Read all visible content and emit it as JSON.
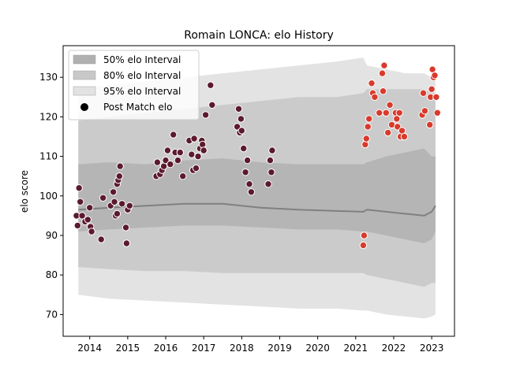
{
  "chart_data": {
    "type": "scatter",
    "title": "Romain LONCA: elo History",
    "xlabel": "",
    "ylabel": "elo score",
    "xlim": [
      2013.3,
      2023.6
    ],
    "ylim": [
      64.5,
      138.0
    ],
    "grid": false,
    "legend_position": "top-left",
    "x_ticks": [
      2014,
      2015,
      2016,
      2017,
      2018,
      2019,
      2020,
      2021,
      2022,
      2023
    ],
    "x_tick_labels": [
      "2014",
      "2015",
      "2016",
      "2017",
      "2018",
      "2019",
      "2020",
      "2021",
      "2022",
      "2023"
    ],
    "y_ticks": [
      70,
      80,
      90,
      100,
      110,
      120,
      130
    ],
    "y_tick_labels": [
      "70",
      "80",
      "90",
      "100",
      "110",
      "120",
      "130"
    ],
    "legend": [
      {
        "label": "50% elo Interval",
        "kind": "band",
        "color": "#b0b0b0"
      },
      {
        "label": "80% elo Interval",
        "kind": "band",
        "color": "#c8c8c8"
      },
      {
        "label": "95% elo Interval",
        "kind": "band",
        "color": "#e2e2e2"
      },
      {
        "label": "Post Match elo",
        "kind": "marker",
        "color": "#000000"
      }
    ],
    "colors": {
      "band_50": "#b5b5b5",
      "band_80": "#cbcbcb",
      "band_95": "#e3e3e3",
      "median_line": "#808080",
      "early_points": "#5c1a2e",
      "late_points": "#d93a2b"
    },
    "bands": {
      "x": [
        2013.7,
        2014.5,
        2015.5,
        2016.5,
        2017.5,
        2018.5,
        2019.5,
        2020.5,
        2021.2,
        2021.3,
        2021.8,
        2022.3,
        2022.8,
        2023.0,
        2023.1
      ],
      "median": [
        96.5,
        97,
        97.5,
        98,
        98,
        97,
        96.5,
        96.2,
        96,
        96.5,
        96,
        95.5,
        95,
        96,
        97.5
      ],
      "p50_low": [
        91,
        91.5,
        92,
        92.5,
        92.5,
        92,
        91.5,
        91.5,
        91,
        91,
        90,
        89,
        88,
        89,
        91
      ],
      "p50_high": [
        108,
        108.5,
        108,
        109,
        109.5,
        108.5,
        108,
        108,
        108,
        108.5,
        110,
        111,
        112,
        110,
        110
      ],
      "p80_low": [
        82,
        81.5,
        81,
        81,
        80.5,
        80.5,
        80.5,
        80.5,
        80.5,
        80,
        79,
        78,
        77,
        78,
        78
      ],
      "p80_high": [
        119,
        120,
        121,
        122,
        123,
        124,
        125,
        125,
        126,
        127,
        127,
        127,
        127,
        126,
        126
      ],
      "p95_low": [
        75,
        74,
        73.5,
        73,
        72.5,
        72,
        71.5,
        71.5,
        71,
        71,
        70,
        69.5,
        69,
        69.5,
        70
      ],
      "p95_high": [
        127,
        128,
        129,
        130,
        131,
        132,
        133,
        134,
        135,
        133,
        132,
        131,
        131,
        130,
        130
      ]
    },
    "series": [
      {
        "color_key": "early_points",
        "points": [
          [
            2013.65,
            95
          ],
          [
            2013.68,
            92.5
          ],
          [
            2013.72,
            102
          ],
          [
            2013.75,
            98.5
          ],
          [
            2013.8,
            95
          ],
          [
            2013.88,
            93.5
          ],
          [
            2013.95,
            94
          ],
          [
            2014.02,
            92.2
          ],
          [
            2014.05,
            91
          ],
          [
            2014.0,
            97
          ],
          [
            2014.3,
            89
          ],
          [
            2014.35,
            99.5
          ],
          [
            2014.55,
            97.5
          ],
          [
            2014.62,
            101
          ],
          [
            2014.65,
            98.5
          ],
          [
            2014.68,
            95
          ],
          [
            2014.72,
            103
          ],
          [
            2014.75,
            104
          ],
          [
            2014.78,
            105
          ],
          [
            2014.8,
            107.5
          ],
          [
            2014.72,
            95.5
          ],
          [
            2014.85,
            98
          ],
          [
            2014.95,
            92
          ],
          [
            2014.97,
            88
          ],
          [
            2015.0,
            96.5
          ],
          [
            2015.05,
            97.5
          ],
          [
            2015.75,
            105
          ],
          [
            2015.78,
            108.5
          ],
          [
            2015.85,
            105.5
          ],
          [
            2015.9,
            106.5
          ],
          [
            2015.95,
            107.5
          ],
          [
            2016.0,
            109
          ],
          [
            2016.05,
            111.5
          ],
          [
            2016.12,
            108
          ],
          [
            2016.2,
            115.5
          ],
          [
            2016.25,
            111
          ],
          [
            2016.32,
            109
          ],
          [
            2016.38,
            111
          ],
          [
            2016.45,
            105
          ],
          [
            2016.62,
            114
          ],
          [
            2016.68,
            110.5
          ],
          [
            2016.72,
            106.5
          ],
          [
            2016.75,
            114.5
          ],
          [
            2016.8,
            107
          ],
          [
            2016.85,
            110
          ],
          [
            2016.9,
            112
          ],
          [
            2016.95,
            114
          ],
          [
            2016.97,
            113
          ],
          [
            2017.0,
            111.5
          ],
          [
            2017.05,
            120.5
          ],
          [
            2017.18,
            128
          ],
          [
            2017.22,
            123
          ],
          [
            2017.88,
            117.5
          ],
          [
            2017.92,
            122
          ],
          [
            2017.95,
            116
          ],
          [
            2017.98,
            119.5
          ],
          [
            2018.0,
            116.5
          ],
          [
            2018.05,
            112
          ],
          [
            2018.1,
            106
          ],
          [
            2018.15,
            109
          ],
          [
            2018.2,
            103
          ],
          [
            2018.25,
            101
          ],
          [
            2018.7,
            103
          ],
          [
            2018.75,
            109
          ],
          [
            2018.78,
            106
          ],
          [
            2018.8,
            111.5
          ]
        ]
      },
      {
        "color_key": "late_points",
        "points": [
          [
            2021.22,
            90
          ],
          [
            2021.2,
            87.5
          ],
          [
            2021.25,
            113
          ],
          [
            2021.28,
            114.5
          ],
          [
            2021.32,
            117.5
          ],
          [
            2021.35,
            119.5
          ],
          [
            2021.42,
            128.5
          ],
          [
            2021.45,
            126
          ],
          [
            2021.5,
            125
          ],
          [
            2021.62,
            121
          ],
          [
            2021.7,
            131
          ],
          [
            2021.72,
            126.5
          ],
          [
            2021.75,
            133
          ],
          [
            2021.8,
            121
          ],
          [
            2021.85,
            116
          ],
          [
            2021.9,
            123
          ],
          [
            2021.95,
            118
          ],
          [
            2022.05,
            121
          ],
          [
            2022.08,
            119.5
          ],
          [
            2022.1,
            117.5
          ],
          [
            2022.15,
            121
          ],
          [
            2022.18,
            115
          ],
          [
            2022.22,
            116.5
          ],
          [
            2022.28,
            115
          ],
          [
            2022.75,
            120.5
          ],
          [
            2022.78,
            126
          ],
          [
            2022.82,
            121.5
          ],
          [
            2022.95,
            118
          ],
          [
            2022.97,
            125
          ],
          [
            2023.0,
            127
          ],
          [
            2023.02,
            132
          ],
          [
            2023.05,
            130
          ],
          [
            2023.08,
            130.5
          ],
          [
            2023.12,
            125
          ],
          [
            2023.15,
            121
          ]
        ]
      }
    ]
  }
}
